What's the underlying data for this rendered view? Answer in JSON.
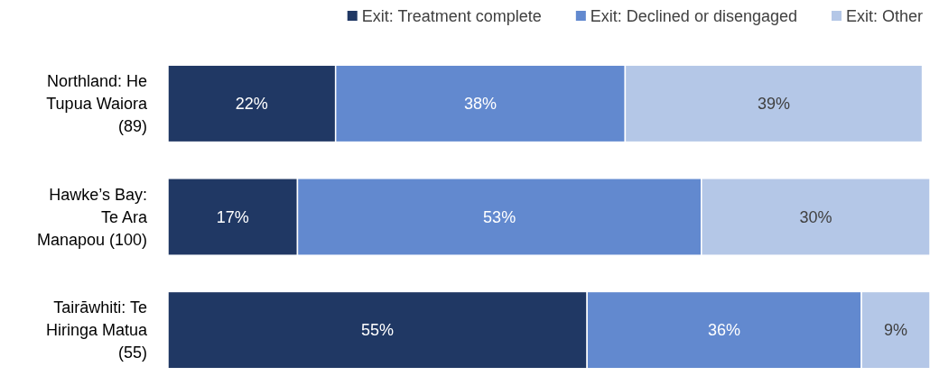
{
  "chart_data": {
    "type": "bar",
    "orientation": "horizontal",
    "stacked": true,
    "categories": [
      "Northland: He Tupua Waiora (89)",
      "Hawke’s Bay: Te Ara Manapou (100)",
      "Tairāwhiti: Te Hiringa Matua (55)"
    ],
    "series": [
      {
        "name": "Exit: Treatment complete",
        "color": "#203864",
        "values": [
          22,
          17,
          55
        ],
        "value_labels": [
          "22%",
          "17%",
          "55%"
        ]
      },
      {
        "name": "Exit: Declined or disengaged",
        "color": "#6289cf",
        "values": [
          38,
          53,
          36
        ],
        "value_labels": [
          "38%",
          "53%",
          "36%"
        ]
      },
      {
        "name": "Exit: Other",
        "color": "#b4c7e7",
        "values": [
          39,
          30,
          9
        ],
        "value_labels": [
          "39%",
          "30%",
          "9%"
        ]
      }
    ],
    "legend": "top right",
    "tick_labels": "y"
  }
}
